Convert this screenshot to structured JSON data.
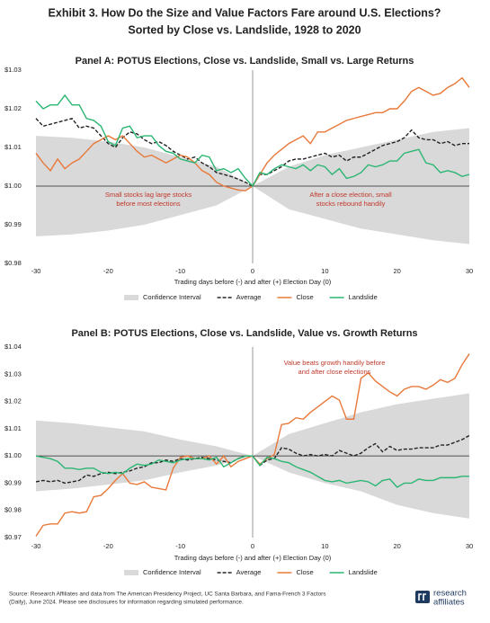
{
  "header": {
    "title": "Exhibit 3. How Do the Size and Value Factors Fare around U.S. Elections?",
    "subtitle": "Sorted by Close vs. Landslide, 1928 to 2020"
  },
  "chart_data": [
    {
      "type": "line",
      "title": "Panel A: POTUS Elections, Close vs. Landslide, Small vs. Large Returns",
      "xlabel": "Trading days before (-) and after (+) Election Day (0)",
      "x": [
        -30,
        -29,
        -28,
        -27,
        -26,
        -25,
        -24,
        -23,
        -22,
        -21,
        -20,
        -19,
        -18,
        -17,
        -16,
        -15,
        -14,
        -13,
        -12,
        -11,
        -10,
        -9,
        -8,
        -7,
        -6,
        -5,
        -4,
        -3,
        -2,
        -1,
        0,
        1,
        2,
        3,
        4,
        5,
        6,
        7,
        8,
        9,
        10,
        11,
        12,
        13,
        14,
        15,
        16,
        17,
        18,
        19,
        20,
        21,
        22,
        23,
        24,
        25,
        26,
        27,
        28,
        29,
        30
      ],
      "xlim": [
        -30,
        30
      ],
      "xticks": [
        -30,
        -20,
        -10,
        0,
        10,
        20,
        30
      ],
      "ylim": [
        0.98,
        1.03
      ],
      "yticks": [
        {
          "value": 0.98,
          "label": "$0.98"
        },
        {
          "value": 0.99,
          "label": "$0.99"
        },
        {
          "value": 1.0,
          "label": "$1.00"
        },
        {
          "value": 1.01,
          "label": "$1.01"
        },
        {
          "value": 1.02,
          "label": "$1.02"
        },
        {
          "value": 1.03,
          "label": "$1.03"
        }
      ],
      "hline": 1.0,
      "vline": 0,
      "series": [
        {
          "name": "Confidence Interval",
          "type": "band",
          "color": "#d9d9d9",
          "x": [
            -30,
            -25,
            -20,
            -15,
            -10,
            -5,
            0,
            5,
            10,
            15,
            20,
            25,
            30
          ],
          "lower": [
            0.987,
            0.9875,
            0.9885,
            0.99,
            0.9925,
            0.995,
            1.0,
            0.994,
            0.9915,
            0.989,
            0.9875,
            0.986,
            0.985
          ],
          "upper": [
            1.013,
            1.0125,
            1.0115,
            1.01,
            1.0075,
            1.005,
            1.0,
            1.005,
            1.008,
            1.01,
            1.012,
            1.014,
            1.015
          ]
        },
        {
          "name": "Average",
          "color": "#222222",
          "dash": true,
          "values": [
            1.0175,
            1.0155,
            1.016,
            1.0165,
            1.017,
            1.0175,
            1.015,
            1.0155,
            1.015,
            1.013,
            1.011,
            1.01,
            1.0125,
            1.014,
            1.0135,
            1.012,
            1.011,
            1.0115,
            1.0105,
            1.009,
            1.008,
            1.007,
            1.0075,
            1.006,
            1.005,
            1.0035,
            1.003,
            1.0025,
            1.0018,
            1.001,
            1.0,
            1.003,
            1.003,
            1.004,
            1.005,
            1.0065,
            1.007,
            1.007,
            1.0075,
            1.008,
            1.0085,
            1.0075,
            1.008,
            1.0065,
            1.0075,
            1.0075,
            1.0085,
            1.0095,
            1.0105,
            1.011,
            1.0115,
            1.0125,
            1.0145,
            1.0125,
            1.012,
            1.012,
            1.011,
            1.0115,
            1.0105,
            1.011,
            1.011
          ]
        },
        {
          "name": "Close",
          "color": "#e8793a",
          "values": [
            1.0085,
            1.006,
            1.004,
            1.007,
            1.0045,
            1.006,
            1.007,
            1.009,
            1.011,
            1.012,
            1.013,
            1.012,
            1.013,
            1.011,
            1.009,
            1.0075,
            1.008,
            1.007,
            1.006,
            1.007,
            1.008,
            1.0075,
            1.006,
            1.004,
            1.003,
            1.001,
            1.0,
            0.9995,
            0.999,
            0.9988,
            1.0,
            1.003,
            1.006,
            1.008,
            1.0095,
            1.011,
            1.012,
            1.013,
            1.011,
            1.014,
            1.014,
            1.015,
            1.016,
            1.017,
            1.0175,
            1.018,
            1.0185,
            1.019,
            1.019,
            1.02,
            1.02,
            1.022,
            1.0245,
            1.0255,
            1.0245,
            1.0235,
            1.024,
            1.0255,
            1.0265,
            1.028,
            1.0255
          ]
        },
        {
          "name": "Landslide",
          "color": "#2bb673",
          "values": [
            1.022,
            1.02,
            1.021,
            1.021,
            1.0235,
            1.021,
            1.021,
            1.0175,
            1.017,
            1.0155,
            1.0115,
            1.0105,
            1.015,
            1.0155,
            1.0125,
            1.013,
            1.013,
            1.0105,
            1.009,
            1.0085,
            1.007,
            1.0065,
            1.006,
            1.008,
            1.0075,
            1.004,
            1.0045,
            1.0035,
            1.0045,
            1.002,
            1.0,
            1.0035,
            1.003,
            1.0045,
            1.0055,
            1.005,
            1.0045,
            1.0055,
            1.004,
            1.0055,
            1.005,
            1.003,
            1.0045,
            1.002,
            1.0025,
            1.0035,
            1.0055,
            1.005,
            1.0055,
            1.0065,
            1.0065,
            1.0085,
            1.009,
            1.0095,
            1.006,
            1.0055,
            1.0035,
            1.004,
            1.0035,
            1.0025,
            1.003
          ]
        }
      ],
      "annotations": [
        [
          "Small stocks lag large stocks",
          "before most elections"
        ],
        [
          "After a close election, small",
          "stocks rebound handily"
        ]
      ]
    },
    {
      "type": "line",
      "title": "Panel B: POTUS Elections, Close vs. Landslide, Value vs. Growth Returns",
      "xlabel": "Trading days before (-) and after (+) Election Day (0)",
      "x": [
        -30,
        -29,
        -28,
        -27,
        -26,
        -25,
        -24,
        -23,
        -22,
        -21,
        -20,
        -19,
        -18,
        -17,
        -16,
        -15,
        -14,
        -13,
        -12,
        -11,
        -10,
        -9,
        -8,
        -7,
        -6,
        -5,
        -4,
        -3,
        -2,
        -1,
        0,
        1,
        2,
        3,
        4,
        5,
        6,
        7,
        8,
        9,
        10,
        11,
        12,
        13,
        14,
        15,
        16,
        17,
        18,
        19,
        20,
        21,
        22,
        23,
        24,
        25,
        26,
        27,
        28,
        29,
        30
      ],
      "xlim": [
        -30,
        30
      ],
      "xticks": [
        -30,
        -20,
        -10,
        0,
        10,
        20,
        30
      ],
      "ylim": [
        0.97,
        1.04
      ],
      "yticks": [
        {
          "value": 0.97,
          "label": "$0.97"
        },
        {
          "value": 0.98,
          "label": "$0.98"
        },
        {
          "value": 0.99,
          "label": "$0.99"
        },
        {
          "value": 1.0,
          "label": "$1.00"
        },
        {
          "value": 1.01,
          "label": "$1.01"
        },
        {
          "value": 1.02,
          "label": "$1.02"
        },
        {
          "value": 1.03,
          "label": "$1.03"
        },
        {
          "value": 1.04,
          "label": "$1.04"
        }
      ],
      "hline": 1.0,
      "vline": 0,
      "series": [
        {
          "name": "Confidence Interval",
          "type": "band",
          "color": "#d9d9d9",
          "x": [
            -30,
            -25,
            -20,
            -15,
            -10,
            -5,
            0,
            5,
            10,
            15,
            20,
            25,
            30
          ],
          "lower": [
            0.987,
            0.988,
            0.9895,
            0.991,
            0.994,
            0.9965,
            1.0,
            0.994,
            0.99,
            0.987,
            0.982,
            0.979,
            0.977
          ],
          "upper": [
            1.013,
            1.012,
            1.0105,
            1.009,
            1.006,
            1.0035,
            1.0,
            1.008,
            1.012,
            1.016,
            1.019,
            1.021,
            1.023
          ]
        },
        {
          "name": "Average",
          "color": "#222222",
          "dash": true,
          "values": [
            0.9905,
            0.991,
            0.9905,
            0.991,
            0.99,
            0.9905,
            0.991,
            0.993,
            0.9925,
            0.9935,
            0.994,
            0.9935,
            0.994,
            0.9945,
            0.9955,
            0.996,
            0.9975,
            0.9975,
            0.9985,
            0.998,
            0.999,
            0.9985,
            0.999,
            0.9995,
            0.999,
            0.9985,
            0.998,
            0.9975,
            0.999,
            1.0,
            1.0,
            0.9965,
            0.9985,
            0.999,
            1.003,
            1.0025,
            1.001,
            1.0,
            1.0005,
            1.0,
            1.0005,
            1.0,
            1.002,
            1.001,
            1.0,
            1.001,
            1.003,
            1.0045,
            1.0015,
            1.0035,
            1.002,
            1.0025,
            1.0025,
            1.003,
            1.003,
            1.003,
            1.004,
            1.004,
            1.005,
            1.006,
            1.0075
          ]
        },
        {
          "name": "Close",
          "color": "#e8793a",
          "values": [
            0.9705,
            0.9745,
            0.975,
            0.975,
            0.979,
            0.9795,
            0.979,
            0.9795,
            0.985,
            0.9855,
            0.988,
            0.991,
            0.9935,
            0.99,
            0.9895,
            0.9905,
            0.9885,
            0.988,
            0.9875,
            0.9955,
            0.9995,
            1.0,
            0.999,
            0.999,
            1.0,
            0.997,
            1.0,
            0.996,
            0.998,
            0.999,
            1.0,
            0.997,
            0.999,
            1.0005,
            1.0115,
            1.012,
            1.014,
            1.0135,
            1.016,
            1.018,
            1.02,
            1.022,
            1.0205,
            1.0135,
            1.0135,
            1.0285,
            1.0305,
            1.0275,
            1.0255,
            1.0235,
            1.022,
            1.0245,
            1.0255,
            1.0255,
            1.0245,
            1.026,
            1.028,
            1.027,
            1.0285,
            1.0335,
            1.0375
          ]
        },
        {
          "name": "Landslide",
          "color": "#2bb673",
          "values": [
            1.0,
            0.9995,
            0.999,
            0.998,
            0.9955,
            0.9955,
            0.995,
            0.9955,
            0.9955,
            0.994,
            0.9935,
            0.994,
            0.9935,
            0.9955,
            0.997,
            0.9965,
            0.997,
            0.9985,
            0.998,
            0.9975,
            0.9985,
            0.999,
            0.999,
            0.999,
            0.9985,
            0.9995,
            0.996,
            0.9975,
            0.999,
            1.0,
            1.0,
            0.9965,
            0.9995,
            0.999,
            0.998,
            0.9975,
            0.996,
            0.995,
            0.994,
            0.9925,
            0.991,
            0.9905,
            0.991,
            0.99,
            0.9905,
            0.991,
            0.9905,
            0.989,
            0.991,
            0.9915,
            0.9885,
            0.99,
            0.99,
            0.9915,
            0.991,
            0.991,
            0.992,
            0.992,
            0.992,
            0.9925,
            0.9925
          ]
        }
      ],
      "annotations": [
        [
          "Value beats growth handily before",
          "and after close elections"
        ]
      ]
    }
  ],
  "footer": {
    "source": [
      "Source: Research Affiliates and data from The American Presidency Project, UC Santa Barbara, and Fama-French 3 Factors",
      "(Daily), June 2024. Please see disclosures for information regarding simulated performance."
    ],
    "logo": [
      "research",
      "affiliates"
    ]
  }
}
